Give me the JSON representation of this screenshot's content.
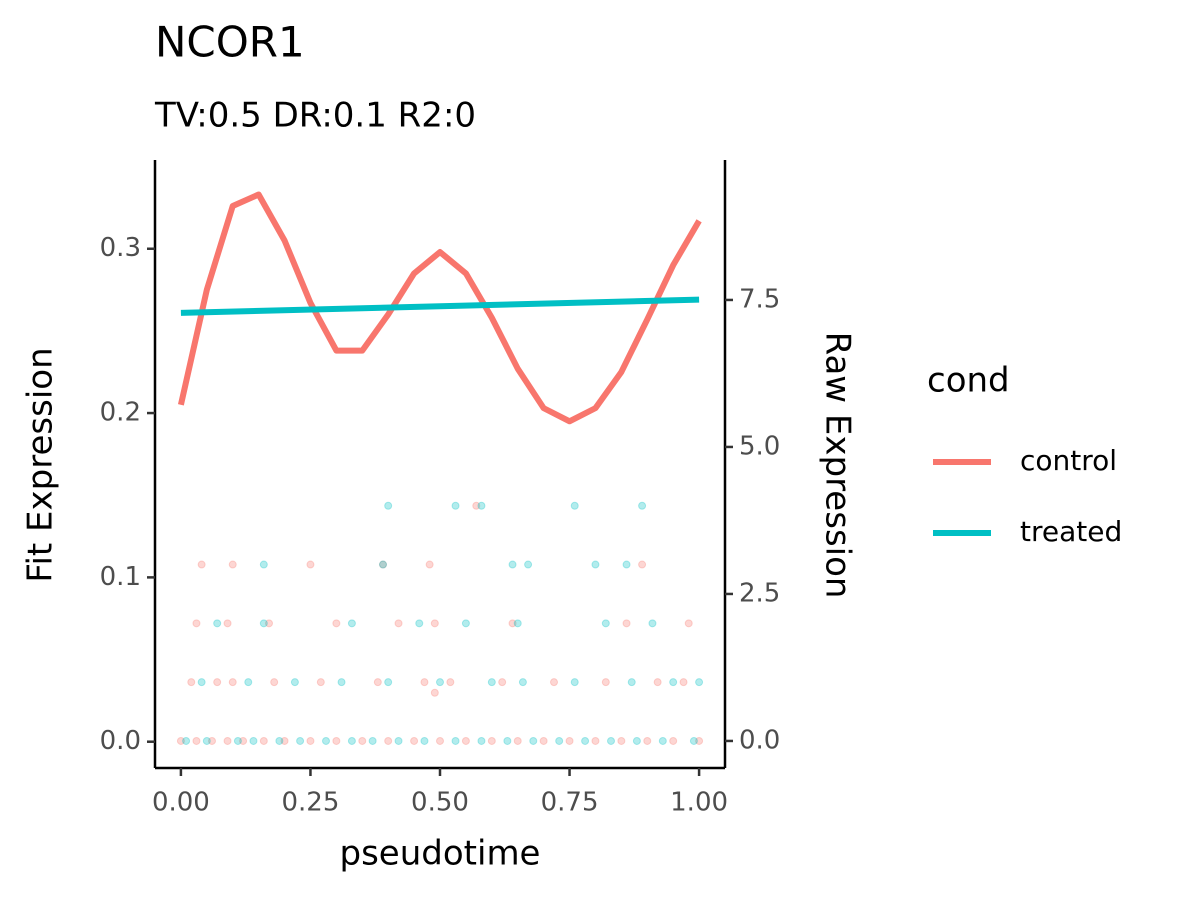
{
  "chart_data": {
    "type": "line",
    "title": "NCOR1",
    "subtitle": "TV:0.5 DR:0.1 R2:0",
    "x_label": "pseudotime",
    "y_label": "Fit Expression",
    "y2_label": "Raw Expression",
    "legend_title": "cond",
    "legend_position": "right",
    "xlim": [
      -0.05,
      1.05
    ],
    "xticks": [
      {
        "value": 0,
        "label": "0.00"
      },
      {
        "value": 0.25,
        "label": "0.25"
      },
      {
        "value": 0.5,
        "label": "0.50"
      },
      {
        "value": 0.75,
        "label": "0.75"
      },
      {
        "value": 1,
        "label": "1.00"
      }
    ],
    "ylim": [
      -0.016,
      0.354
    ],
    "yticks": [
      {
        "value": 0,
        "label": "0.0"
      },
      0.1,
      0.2,
      0.3
    ],
    "y2lim": [
      -0.46,
      9.88
    ],
    "y2ticks": [
      {
        "value": 0,
        "label": "0.0"
      },
      2.5,
      {
        "value": 5,
        "label": "5.0"
      },
      7.5
    ],
    "series": [
      {
        "name": "control",
        "color": "#f8766d",
        "x": [
          0,
          0.05,
          0.1,
          0.15,
          0.2,
          0.25,
          0.3,
          0.35,
          0.4,
          0.45,
          0.5,
          0.55,
          0.6,
          0.65,
          0.7,
          0.75,
          0.8,
          0.85,
          0.9,
          0.95,
          1
        ],
        "values": [
          0.205,
          0.275,
          0.326,
          0.333,
          0.305,
          0.267,
          0.238,
          0.238,
          0.26,
          0.285,
          0.298,
          0.285,
          0.258,
          0.227,
          0.203,
          0.195,
          0.203,
          0.225,
          0.257,
          0.29,
          0.317
        ]
      },
      {
        "name": "treated",
        "color": "#00bfc4",
        "x": [
          0,
          1
        ],
        "values": [
          0.261,
          0.269
        ]
      }
    ],
    "raw_points": [
      {
        "type": "scatter",
        "axis": "y2",
        "color": "#f8766d",
        "x": [
          0,
          0.03,
          0.06,
          0.09,
          0.12,
          0.16,
          0.2,
          0.25,
          0.3,
          0.35,
          0.4,
          0.45,
          0.5,
          0.55,
          0.6,
          0.65,
          0.7,
          0.75,
          0.8,
          0.85,
          0.9,
          0.95,
          1,
          0.02,
          0.07,
          0.1,
          0.18,
          0.27,
          0.38,
          0.47,
          0.52,
          0.62,
          0.72,
          0.82,
          0.92,
          0.97,
          0.03,
          0.09,
          0.17,
          0.3,
          0.42,
          0.49,
          0.64,
          0.86,
          0.98,
          0.04,
          0.1,
          0.25,
          0.39,
          0.48,
          0.89,
          0.57,
          0.49
        ],
        "values": [
          0,
          0,
          0,
          0,
          0,
          0,
          0,
          0,
          0,
          0,
          0,
          0,
          0,
          0,
          0,
          0,
          0,
          0,
          0,
          0,
          0,
          0,
          0,
          1,
          1,
          1,
          1,
          1,
          1,
          1,
          1,
          1,
          1,
          1,
          1,
          1,
          2,
          2,
          2,
          2,
          2,
          2,
          2,
          2,
          2,
          3,
          3,
          3,
          3,
          3,
          3,
          4,
          0.82
        ]
      },
      {
        "type": "scatter",
        "axis": "y2",
        "color": "#00bfc4",
        "x": [
          0.01,
          0.05,
          0.11,
          0.14,
          0.19,
          0.23,
          0.28,
          0.33,
          0.37,
          0.42,
          0.47,
          0.53,
          0.58,
          0.63,
          0.68,
          0.73,
          0.78,
          0.83,
          0.88,
          0.93,
          0.99,
          0.04,
          0.13,
          0.22,
          0.31,
          0.4,
          0.5,
          0.6,
          0.66,
          0.76,
          0.87,
          0.95,
          1,
          0.07,
          0.16,
          0.33,
          0.46,
          0.55,
          0.65,
          0.82,
          0.91,
          0.16,
          0.39,
          0.64,
          0.67,
          0.8,
          0.86,
          0.4,
          0.53,
          0.58,
          0.76,
          0.89
        ],
        "values": [
          0,
          0,
          0,
          0,
          0,
          0,
          0,
          0,
          0,
          0,
          0,
          0,
          0,
          0,
          0,
          0,
          0,
          0,
          0,
          0,
          0,
          1,
          1,
          1,
          1,
          1,
          1,
          1,
          1,
          1,
          1,
          1,
          1,
          2,
          2,
          2,
          2,
          2,
          2,
          2,
          2,
          3,
          3,
          3,
          3,
          3,
          3,
          4,
          4,
          4,
          4,
          4
        ]
      }
    ]
  }
}
